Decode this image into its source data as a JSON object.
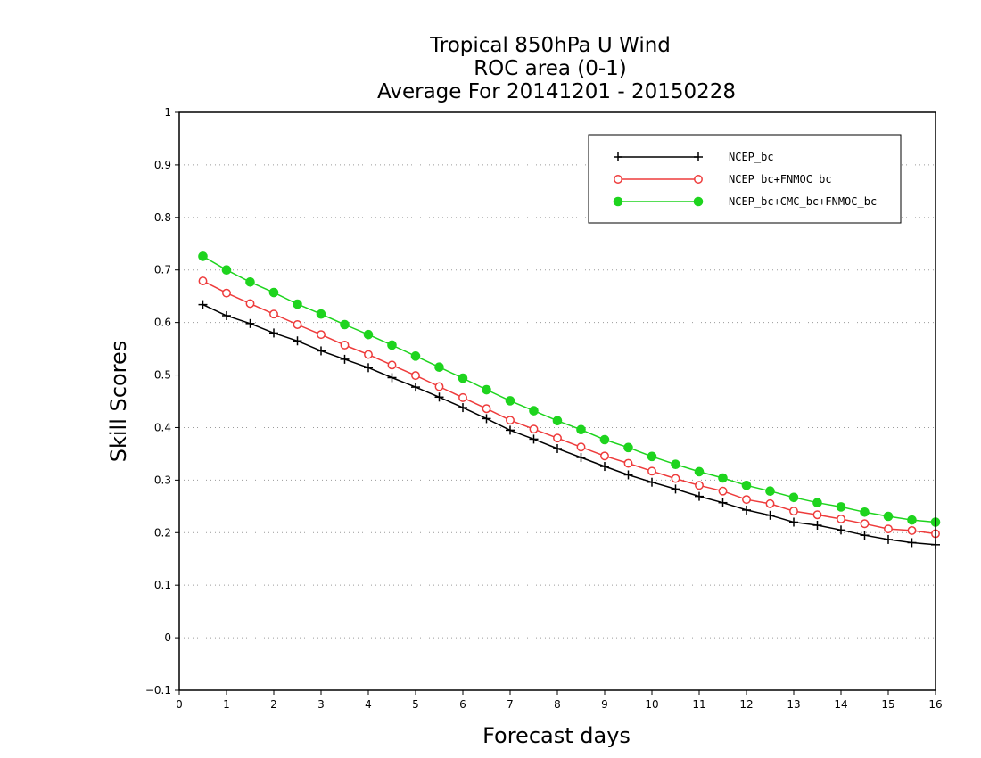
{
  "chart_data": {
    "type": "line",
    "title_lines": [
      "Tropical 850hPa U Wind",
      "ROC area (0-1)",
      "Average For 20141201 - 20150228"
    ],
    "xlabel": "Forecast days",
    "ylabel": "Skill Scores",
    "xlim": [
      0,
      16
    ],
    "ylim": [
      -0.1,
      1
    ],
    "x_ticks": [
      "0",
      "1",
      "2",
      "3",
      "4",
      "5",
      "6",
      "7",
      "8",
      "9",
      "10",
      "11",
      "12",
      "13",
      "14",
      "15",
      "16"
    ],
    "y_ticks": [
      "−0.1",
      "0",
      "0.1",
      "0.2",
      "0.3",
      "0.4",
      "0.5",
      "0.6",
      "0.7",
      "0.8",
      "0.9",
      "1"
    ],
    "grid": "horizontal dotted",
    "legend_position": "top-right",
    "x": [
      0.5,
      1,
      1.5,
      2,
      2.5,
      3,
      3.5,
      4,
      4.5,
      5,
      5.5,
      6,
      6.5,
      7,
      7.5,
      8,
      8.5,
      9,
      9.5,
      10,
      10.5,
      11,
      11.5,
      12,
      12.5,
      13,
      13.5,
      14,
      14.5,
      15,
      15.5,
      16
    ],
    "series": [
      {
        "name": "NCEP_bc",
        "color": "#000000",
        "marker": "plus",
        "values": [
          0.634,
          0.613,
          0.598,
          0.58,
          0.565,
          0.546,
          0.53,
          0.514,
          0.495,
          0.477,
          0.458,
          0.438,
          0.417,
          0.395,
          0.378,
          0.36,
          0.343,
          0.326,
          0.31,
          0.296,
          0.283,
          0.269,
          0.257,
          0.243,
          0.233,
          0.22,
          0.214,
          0.205,
          0.195,
          0.187,
          0.181,
          0.177
        ]
      },
      {
        "name": "NCEP_bc+FNMOC_bc",
        "color": "#ee3b3b",
        "marker": "open-circle",
        "values": [
          0.679,
          0.656,
          0.636,
          0.616,
          0.596,
          0.577,
          0.557,
          0.539,
          0.519,
          0.499,
          0.478,
          0.457,
          0.436,
          0.414,
          0.397,
          0.38,
          0.363,
          0.346,
          0.332,
          0.317,
          0.303,
          0.29,
          0.279,
          0.263,
          0.255,
          0.241,
          0.234,
          0.226,
          0.217,
          0.207,
          0.204,
          0.198
        ]
      },
      {
        "name": "NCEP_bc+CMC_bc+FNMOC_bc",
        "color": "#1ed41e",
        "marker": "filled-circle",
        "values": [
          0.726,
          0.7,
          0.677,
          0.657,
          0.635,
          0.616,
          0.596,
          0.577,
          0.557,
          0.536,
          0.515,
          0.494,
          0.472,
          0.451,
          0.432,
          0.413,
          0.396,
          0.377,
          0.362,
          0.345,
          0.33,
          0.316,
          0.304,
          0.29,
          0.279,
          0.267,
          0.257,
          0.249,
          0.239,
          0.231,
          0.224,
          0.22
        ]
      }
    ]
  }
}
